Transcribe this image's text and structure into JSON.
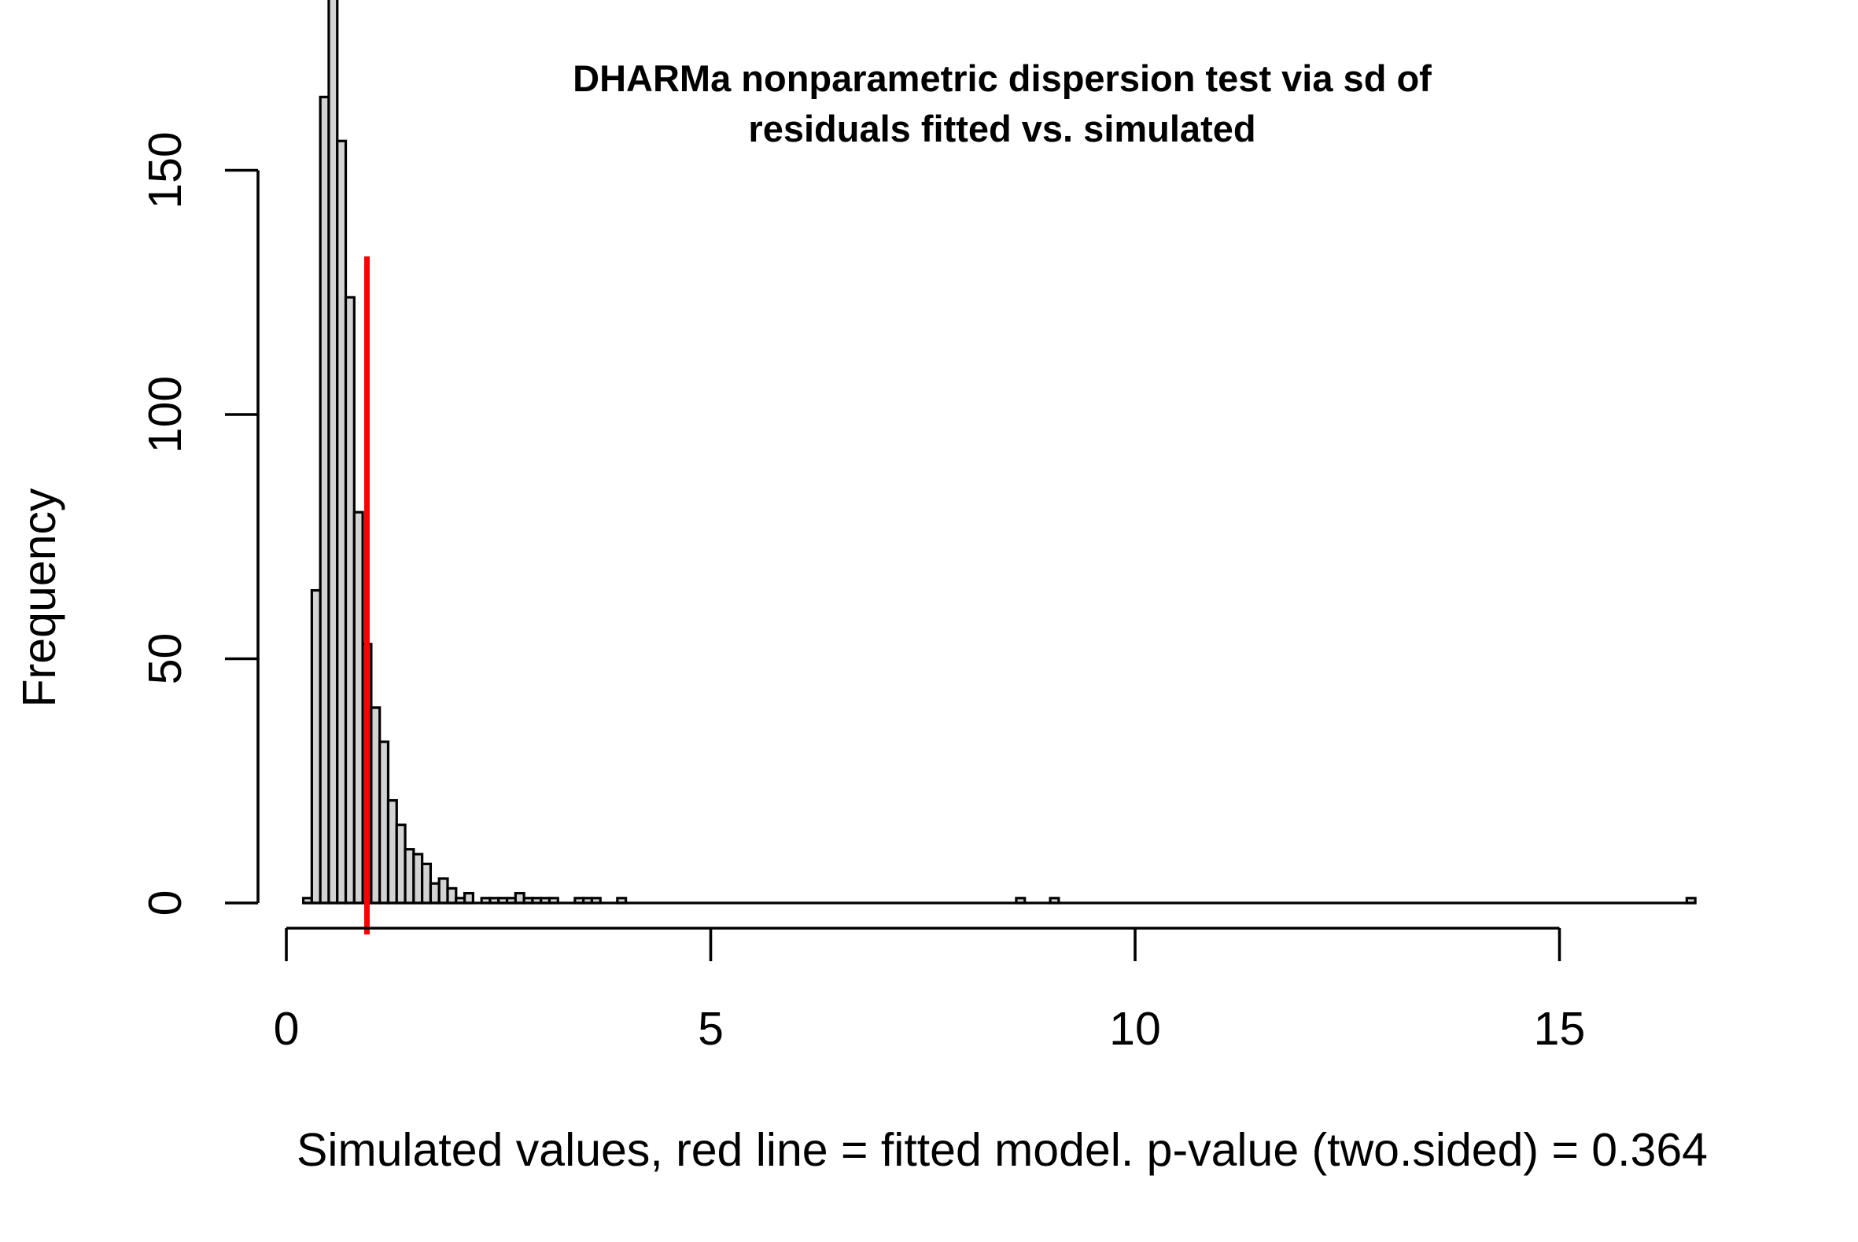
{
  "chart_data": {
    "type": "bar",
    "title": "DHARMa nonparametric dispersion test via sd of",
    "title_line2": "residuals fitted vs. simulated",
    "xlabel": "Simulated values, red line = fitted model. p-value (two.sided) = 0.364",
    "ylabel": "Frequency",
    "xlim": [
      0,
      16.6
    ],
    "ylim": [
      0,
      190
    ],
    "bin_width": 0.1,
    "x_ticks": [
      0,
      5,
      10,
      15
    ],
    "y_ticks": [
      0,
      50,
      100,
      150
    ],
    "grid": false,
    "legend": "none",
    "bar_color": "#d3d3d3",
    "bar_border_color": "#000000",
    "reference_line": {
      "x": 0.95,
      "color": "#ff0000",
      "label": "fitted model"
    },
    "bins": [
      {
        "x0": 0.2,
        "count": 1
      },
      {
        "x0": 0.3,
        "count": 64
      },
      {
        "x0": 0.4,
        "count": 165
      },
      {
        "x0": 0.5,
        "count": 190
      },
      {
        "x0": 0.6,
        "count": 156
      },
      {
        "x0": 0.7,
        "count": 124
      },
      {
        "x0": 0.8,
        "count": 80
      },
      {
        "x0": 0.9,
        "count": 53
      },
      {
        "x0": 1.0,
        "count": 40
      },
      {
        "x0": 1.1,
        "count": 33
      },
      {
        "x0": 1.2,
        "count": 21
      },
      {
        "x0": 1.3,
        "count": 16
      },
      {
        "x0": 1.4,
        "count": 11
      },
      {
        "x0": 1.5,
        "count": 10
      },
      {
        "x0": 1.6,
        "count": 8
      },
      {
        "x0": 1.7,
        "count": 4
      },
      {
        "x0": 1.8,
        "count": 5
      },
      {
        "x0": 1.9,
        "count": 3
      },
      {
        "x0": 2.0,
        "count": 1
      },
      {
        "x0": 2.1,
        "count": 2
      },
      {
        "x0": 2.3,
        "count": 1
      },
      {
        "x0": 2.4,
        "count": 1
      },
      {
        "x0": 2.5,
        "count": 1
      },
      {
        "x0": 2.6,
        "count": 1
      },
      {
        "x0": 2.7,
        "count": 2
      },
      {
        "x0": 2.8,
        "count": 1
      },
      {
        "x0": 2.9,
        "count": 1
      },
      {
        "x0": 3.0,
        "count": 1
      },
      {
        "x0": 3.1,
        "count": 1
      },
      {
        "x0": 3.4,
        "count": 1
      },
      {
        "x0": 3.5,
        "count": 1
      },
      {
        "x0": 3.6,
        "count": 1
      },
      {
        "x0": 3.9,
        "count": 1
      },
      {
        "x0": 8.6,
        "count": 1
      },
      {
        "x0": 9.0,
        "count": 1
      },
      {
        "x0": 16.5,
        "count": 1
      }
    ]
  }
}
